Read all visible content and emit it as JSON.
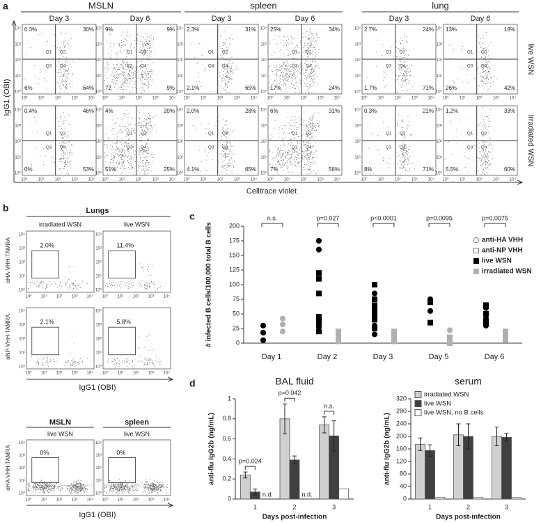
{
  "panel_a": {
    "label": "a",
    "groups": [
      "MSLN",
      "spleen",
      "lung"
    ],
    "days": [
      "Day 3",
      "Day 6"
    ],
    "rows": [
      "live WSN",
      "irradiated WSN"
    ],
    "ylabel": "IgG1 (OBI)",
    "xlabel": "Celltrace violet",
    "quadrants": [
      "Q1",
      "Q2",
      "Q3",
      "Q4"
    ],
    "axis_ticks": [
      "10⁰",
      "10¹",
      "10²",
      "10³",
      "10⁴"
    ],
    "plots": [
      [
        [
          "0.3%",
          "30%",
          "6%",
          "64%"
        ],
        [
          "9%",
          "9%",
          "72",
          "9%"
        ],
        [
          "2.3%",
          "31%",
          "2.1%",
          "65%"
        ],
        [
          "25%",
          "34%",
          "17%",
          "24%"
        ],
        [
          "2.7%",
          "24%",
          "1.7%",
          "71%"
        ],
        [
          "13%",
          "18%",
          "26%",
          "42%"
        ]
      ],
      [
        [
          "0.4%",
          "46%",
          "0%",
          "53%"
        ],
        [
          "4%",
          "20%",
          "51%",
          "25%"
        ],
        [
          "2.0%",
          "28%",
          "4.1%",
          "65%"
        ],
        [
          "6%",
          "31%",
          "7%",
          "56%"
        ],
        [
          "0.3%",
          "21%",
          "8%",
          "71%"
        ],
        [
          "1.2%",
          "33%",
          "5.5%",
          "60%"
        ]
      ]
    ]
  },
  "panel_b": {
    "label": "b",
    "lungs_title": "Lungs",
    "columns": [
      "irradiated WSN",
      "live WSN"
    ],
    "ylabels": [
      "αHA-VHH-TAMRA",
      "αNP-VHH-TAMRA"
    ],
    "gates": [
      [
        "2.0%",
        "11.4%"
      ],
      [
        "2.1%",
        "5.8%"
      ]
    ],
    "xlabel": "IgG1 (OBI)",
    "lower_titles": [
      "MSLN",
      "spleen"
    ],
    "lower_condition": "live WSN",
    "lower_ylabel": "αHA-VHH-TAMRA",
    "lower_gates": [
      "0%",
      "0%"
    ],
    "axis_ticks": [
      "10⁰",
      "10¹",
      "10²",
      "10³",
      "10⁴"
    ]
  },
  "panel_c_label": "c",
  "panel_d_label": "d",
  "chart_data": [
    {
      "type": "scatter",
      "ylabel": "# infected B cells/100,000 total B cells",
      "categories": [
        "Day 1",
        "Day 2",
        "Day 3",
        "Day 5",
        "Day 6"
      ],
      "significance": [
        "n.s.",
        "p=0.027",
        "p<0.0001",
        "p=0.0095",
        "p=0.0075"
      ],
      "ylim": [
        0,
        200
      ],
      "yticks": [
        0,
        25,
        50,
        75,
        100,
        125,
        150,
        175,
        200
      ],
      "series": [
        {
          "marker": "circle",
          "color": "#000000",
          "x": [
            "Day 1",
            "Day 1",
            "Day 1",
            "Day 2",
            "Day 2",
            "Day 2",
            "Day 2",
            "Day 3",
            "Day 3",
            "Day 3",
            "Day 3",
            "Day 5",
            "Day 5",
            "Day 6",
            "Day 6",
            "Day 6"
          ],
          "values": [
            30,
            18,
            5,
            175,
            160,
            40,
            28,
            85,
            50,
            30,
            15,
            75,
            55,
            60,
            42,
            30
          ]
        },
        {
          "marker": "square",
          "color": "#000000",
          "x": [
            "Day 2",
            "Day 2",
            "Day 2",
            "Day 2",
            "Day 2",
            "Day 2",
            "Day 3",
            "Day 3",
            "Day 3",
            "Day 3",
            "Day 3",
            "Day 3",
            "Day 3",
            "Day 3",
            "Day 5",
            "Day 5",
            "Day 6",
            "Day 6",
            "Day 6",
            "Day 6"
          ],
          "values": [
            120,
            110,
            85,
            45,
            35,
            20,
            100,
            75,
            65,
            60,
            55,
            45,
            40,
            25,
            70,
            35,
            65,
            50,
            38,
            35
          ]
        },
        {
          "marker": "circle",
          "color": "#b0b0b0",
          "x": [
            "Day 1",
            "Day 1",
            "Day 1",
            "Day 5"
          ],
          "values": [
            42,
            32,
            20,
            22
          ]
        },
        {
          "marker": "square",
          "color": "#b0b0b0",
          "x": [
            "Day 2",
            "Day 2",
            "Day 2",
            "Day 2",
            "Day 2",
            "Day 3",
            "Day 3",
            "Day 3",
            "Day 3",
            "Day 5",
            "Day 5",
            "Day 5",
            "Day 6",
            "Day 6",
            "Day 6",
            "Day 6"
          ],
          "values": [
            20,
            15,
            12,
            8,
            3,
            20,
            12,
            8,
            3,
            10,
            5,
            0,
            20,
            15,
            10,
            5
          ]
        }
      ],
      "legend": [
        {
          "label": "anti-HA VHH",
          "marker": "circle",
          "color": "#ffffff"
        },
        {
          "label": "anti-NP VHH",
          "marker": "square",
          "color": "#ffffff"
        },
        {
          "label": "live WSN",
          "marker": "square",
          "color": "#000000"
        },
        {
          "label": "irradiated WSN",
          "marker": "square",
          "color": "#b0b0b0"
        }
      ]
    },
    {
      "type": "bar",
      "title": "BAL fluid",
      "xlabel": "Days post-infection",
      "ylabel": "anti-flu IgG2b (ng/mL)",
      "categories": [
        "1",
        "2",
        "3"
      ],
      "significance": [
        "p=0.024",
        "p=0.042",
        "n.s."
      ],
      "ylim": [
        0,
        1
      ],
      "yticks": [
        0,
        0.2,
        0.4,
        0.6,
        0.8,
        1
      ],
      "legend": false,
      "series": [
        {
          "color": "#d0d0d0",
          "values": [
            0.24,
            0.8,
            0.74
          ],
          "errors": [
            0.03,
            0.15,
            0.08
          ]
        },
        {
          "color": "#404040",
          "values": [
            0.07,
            0.39,
            0.63
          ],
          "errors": [
            0.03,
            0.04,
            0.15
          ]
        },
        {
          "color": "#ffffff",
          "values": [
            null,
            null,
            0.1
          ],
          "value_labels": [
            "n.d.",
            "n.d.",
            null
          ]
        }
      ]
    },
    {
      "type": "bar",
      "title": "serum",
      "xlabel": "Days post-infection",
      "ylabel": "anti-flu IgG2b (ng/mL)",
      "categories": [
        "1",
        "2",
        "3"
      ],
      "ylim": [
        0,
        320
      ],
      "yticks": [
        0,
        40,
        80,
        120,
        160,
        200,
        240,
        280,
        320
      ],
      "legend": true,
      "series": [
        {
          "name": "irradiated WSN",
          "color": "#d0d0d0",
          "values": [
            175,
            205,
            200
          ],
          "errors": [
            20,
            35,
            30
          ]
        },
        {
          "name": "live WSN",
          "color": "#404040",
          "values": [
            155,
            200,
            197
          ],
          "errors": [
            18,
            40,
            12
          ]
        },
        {
          "name": "live WSN, no B cells",
          "color": "#ffffff",
          "values": [
            5,
            5,
            5
          ]
        }
      ]
    }
  ]
}
